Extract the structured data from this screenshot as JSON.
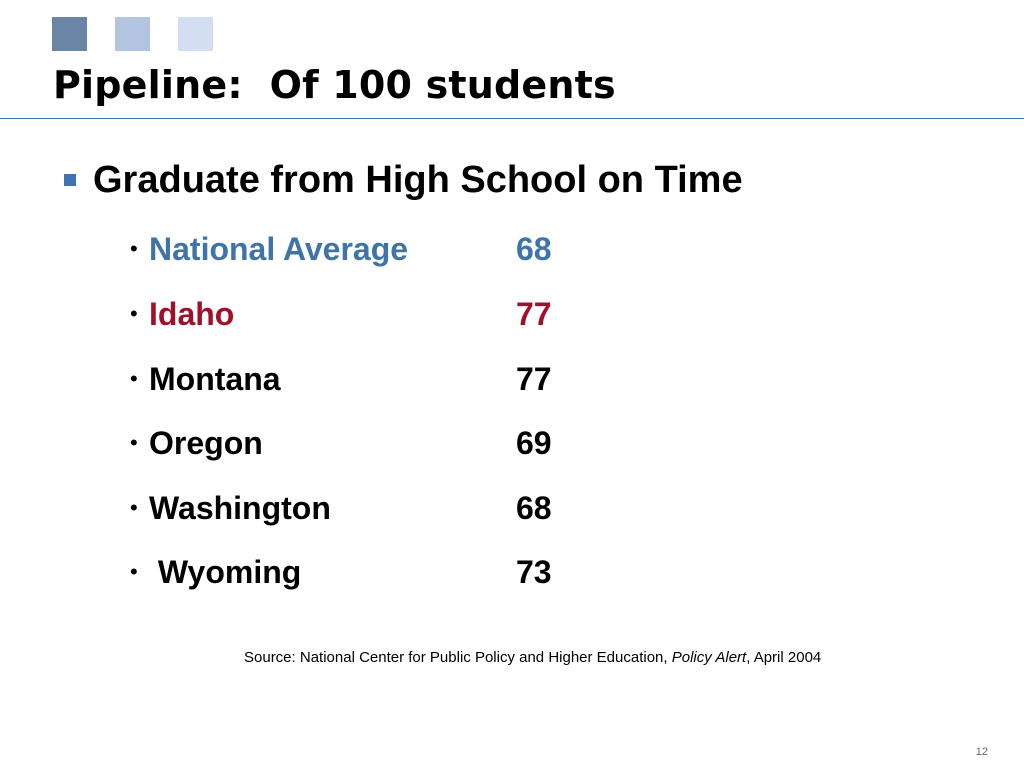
{
  "colors": {
    "square_1": "#6b85a6",
    "square_2": "#b3c4e0",
    "square_3": "#d4def1",
    "title_rule": "#3d78a6",
    "bullet_square": "#3f74b4",
    "national": "#3f74a8",
    "idaho": "#a0102a",
    "default_text": "#000000"
  },
  "title": "Pipeline:  Of 100 students",
  "main_bullet": {
    "icon": "square-bullet-icon",
    "text": "Graduate from High School on Time"
  },
  "rows": [
    {
      "name": "National Average",
      "value": "68",
      "color_key": "national"
    },
    {
      "name": "Idaho",
      "value": "77",
      "color_key": "idaho"
    },
    {
      "name": "Montana",
      "value": "77",
      "color_key": "default_text"
    },
    {
      "name": "Oregon",
      "value": "69",
      "color_key": "default_text"
    },
    {
      "name": "Washington",
      "value": "68",
      "color_key": "default_text"
    },
    {
      "name": " Wyoming",
      "value": "73",
      "color_key": "default_text"
    }
  ],
  "bullet_char": "•",
  "source": {
    "prefix": "Source: National Center for Public Policy and Higher Education, ",
    "publication": "Policy Alert",
    "suffix": ", April 2004"
  },
  "page_number": "12"
}
